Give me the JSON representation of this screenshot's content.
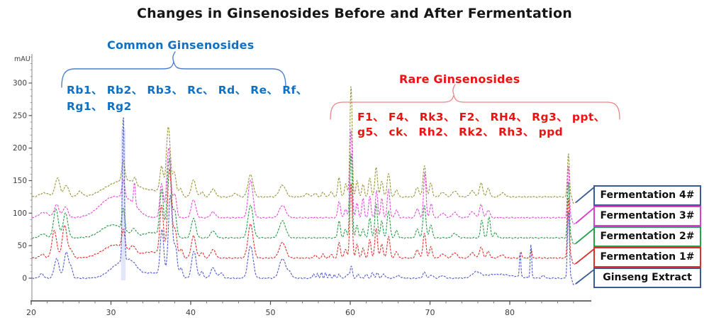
{
  "title": "Changes in Ginsenosides Before and After Fermentation",
  "y_axis": {
    "unit": "mAU",
    "ticks": [
      0,
      50,
      100,
      150,
      200,
      250,
      300
    ]
  },
  "x_axis": {
    "ticks": [
      20,
      30,
      40,
      50,
      60,
      70,
      80
    ]
  },
  "annotations": {
    "common": {
      "title": "Common Ginsenosides",
      "line1": "Rb1、 Rb2、 Rb3、 Rc、 Rd、 Re、 Rf、",
      "line2": "Rg1、 Rg2",
      "color": "#0e71c4",
      "brace_color": "#4c80cf"
    },
    "rare": {
      "title": "Rare Ginsenosides",
      "line1": "F1、 F4、 Rk3、 F2、 RH4、 Rg3、 ppt、",
      "line2": "g5、 ck、 Rh2、 Rk2、 Rh3、 ppd",
      "color": "#ee1212",
      "brace_color": "#ef8287"
    }
  },
  "legend": {
    "items": [
      {
        "label": "Fermentation 4#",
        "color": "#3b5b94"
      },
      {
        "label": "Fermentation 3#",
        "color": "#d83fd0"
      },
      {
        "label": "Fermentation 2#",
        "color": "#24a14e"
      },
      {
        "label": "Fermentation 1#",
        "color": "#e02d2d"
      },
      {
        "label": "Ginseng Extract",
        "color": "#3b5b94"
      }
    ]
  },
  "chart_data": {
    "type": "line",
    "title": "Changes in Ginsenosides Before and After Fermentation",
    "y_unit": "mAU",
    "x_range": [
      20,
      87.8
    ],
    "y_ticks": [
      0,
      50,
      100,
      150,
      200,
      250,
      300
    ],
    "x_ticks": [
      20,
      30,
      40,
      50,
      60,
      70,
      80
    ],
    "x_minor_step": 2,
    "y_minor_step": 10,
    "grid": false,
    "legend_position": "right-boxes",
    "highlight_band": {
      "t": 31.55,
      "v_top": 230,
      "color": "#c9d3f4"
    },
    "series": [
      {
        "name": "Fermentation 4#",
        "color": "#9a9a40",
        "baseline": 125,
        "peaks": [
          [
            21.7,
            6,
            0.6
          ],
          [
            23.3,
            29,
            0.3
          ],
          [
            24.4,
            18,
            0.3
          ],
          [
            26.1,
            8,
            0.3
          ],
          [
            30.6,
            20,
            1.6
          ],
          [
            31.55,
            30,
            0.18
          ],
          [
            32.4,
            12,
            1.0
          ],
          [
            33.0,
            10,
            0.15
          ],
          [
            35.0,
            10,
            1.5
          ],
          [
            36.35,
            40,
            0.22
          ],
          [
            37.2,
            104,
            0.25
          ],
          [
            37.95,
            36,
            0.22
          ],
          [
            38.7,
            13,
            0.2
          ],
          [
            40.35,
            26,
            0.28
          ],
          [
            41.4,
            8,
            0.2
          ],
          [
            42.8,
            12,
            0.3
          ],
          [
            45.6,
            5,
            0.3
          ],
          [
            47.5,
            34,
            0.32
          ],
          [
            51.5,
            18,
            0.4
          ],
          [
            54.6,
            5,
            0.3
          ],
          [
            55.6,
            6,
            0.18
          ],
          [
            56.6,
            7,
            0.18
          ],
          [
            57.6,
            8,
            0.18
          ],
          [
            58.6,
            30,
            0.16
          ],
          [
            59.45,
            21,
            0.16
          ],
          [
            60.1,
            172,
            0.14
          ],
          [
            60.85,
            25,
            0.15
          ],
          [
            61.6,
            19,
            0.16
          ],
          [
            62.45,
            29,
            0.16
          ],
          [
            63.25,
            46,
            0.16
          ],
          [
            63.95,
            25,
            0.16
          ],
          [
            64.8,
            36,
            0.18
          ],
          [
            65.8,
            11,
            0.18
          ],
          [
            68.4,
            15,
            0.2
          ],
          [
            69.3,
            48,
            0.18
          ],
          [
            70.1,
            21,
            0.18
          ],
          [
            71.6,
            7,
            0.3
          ],
          [
            73.1,
            9,
            0.3
          ],
          [
            75.3,
            9,
            0.3
          ],
          [
            76.4,
            22,
            0.2
          ],
          [
            77.3,
            13,
            0.2
          ],
          [
            79.1,
            6,
            0.3
          ],
          [
            87.35,
            68,
            0.12
          ]
        ]
      },
      {
        "name": "Fermentation 3#",
        "color": "#e650dd",
        "baseline": 93,
        "peaks": [
          [
            21.6,
            8,
            0.6
          ],
          [
            23.2,
            20,
            0.3
          ],
          [
            24.3,
            17,
            0.3
          ],
          [
            30.2,
            31,
            1.6
          ],
          [
            31.55,
            26,
            0.18
          ],
          [
            32.5,
            15,
            1.0
          ],
          [
            32.95,
            33,
            0.11
          ],
          [
            36.35,
            52,
            0.22
          ],
          [
            37.25,
            108,
            0.25
          ],
          [
            38.0,
            36,
            0.22
          ],
          [
            40.35,
            28,
            0.28
          ],
          [
            42.8,
            9,
            0.3
          ],
          [
            47.5,
            58,
            0.3
          ],
          [
            51.5,
            19,
            0.4
          ],
          [
            58.6,
            26,
            0.16
          ],
          [
            59.4,
            13,
            0.16
          ],
          [
            60.1,
            135,
            0.15
          ],
          [
            60.85,
            22,
            0.15
          ],
          [
            61.6,
            30,
            0.14
          ],
          [
            62.45,
            34,
            0.14
          ],
          [
            63.3,
            42,
            0.14
          ],
          [
            63.95,
            30,
            0.14
          ],
          [
            64.8,
            44,
            0.16
          ],
          [
            65.8,
            12,
            0.18
          ],
          [
            68.4,
            14,
            0.2
          ],
          [
            69.35,
            70,
            0.15
          ],
          [
            70.15,
            22,
            0.16
          ],
          [
            71.6,
            7,
            0.3
          ],
          [
            73.1,
            8,
            0.3
          ],
          [
            75.3,
            9,
            0.3
          ],
          [
            76.4,
            20,
            0.2
          ],
          [
            77.3,
            12,
            0.2
          ],
          [
            87.35,
            80,
            0.12
          ]
        ]
      },
      {
        "name": "Fermentation 2#",
        "color": "#2f9e4a",
        "baseline": 62,
        "peaks": [
          [
            21.5,
            6,
            0.4
          ],
          [
            23.1,
            44,
            0.3
          ],
          [
            24.3,
            38,
            0.3
          ],
          [
            30.2,
            20,
            1.4
          ],
          [
            31.55,
            32,
            0.18
          ],
          [
            32.9,
            10,
            0.3
          ],
          [
            35.2,
            8,
            1.2
          ],
          [
            36.35,
            70,
            0.22
          ],
          [
            37.3,
            120,
            0.25
          ],
          [
            38.0,
            40,
            0.22
          ],
          [
            40.35,
            30,
            0.28
          ],
          [
            42.8,
            11,
            0.3
          ],
          [
            47.5,
            50,
            0.32
          ],
          [
            51.5,
            26,
            0.4
          ],
          [
            58.6,
            26,
            0.16
          ],
          [
            59.4,
            13,
            0.16
          ],
          [
            60.1,
            130,
            0.15
          ],
          [
            60.85,
            20,
            0.15
          ],
          [
            61.6,
            14,
            0.16
          ],
          [
            62.45,
            30,
            0.16
          ],
          [
            63.25,
            52,
            0.16
          ],
          [
            63.95,
            26,
            0.16
          ],
          [
            64.8,
            42,
            0.18
          ],
          [
            65.8,
            11,
            0.18
          ],
          [
            68.4,
            13,
            0.2
          ],
          [
            69.3,
            50,
            0.18
          ],
          [
            70.1,
            20,
            0.18
          ],
          [
            73.1,
            7,
            0.3
          ],
          [
            76.5,
            28,
            0.16
          ],
          [
            77.4,
            32,
            0.16
          ],
          [
            78.2,
            8,
            0.2
          ],
          [
            87.35,
            88,
            0.12
          ]
        ]
      },
      {
        "name": "Fermentation 1#",
        "color": "#e23535",
        "baseline": 31,
        "peaks": [
          [
            21.4,
            6,
            0.3
          ],
          [
            22.9,
            42,
            0.3
          ],
          [
            24.2,
            50,
            0.3
          ],
          [
            25.0,
            12,
            0.25
          ],
          [
            30.6,
            20,
            1.6
          ],
          [
            31.55,
            28,
            0.18
          ],
          [
            32.8,
            10,
            0.3
          ],
          [
            35.3,
            9,
            1.3
          ],
          [
            36.35,
            75,
            0.22
          ],
          [
            37.35,
            135,
            0.25
          ],
          [
            38.05,
            42,
            0.22
          ],
          [
            38.8,
            14,
            0.2
          ],
          [
            40.35,
            34,
            0.28
          ],
          [
            41.4,
            9,
            0.2
          ],
          [
            42.8,
            13,
            0.3
          ],
          [
            47.5,
            52,
            0.32
          ],
          [
            51.5,
            24,
            0.4
          ],
          [
            55.6,
            5,
            0.15
          ],
          [
            56.6,
            6,
            0.15
          ],
          [
            57.6,
            6,
            0.15
          ],
          [
            58.6,
            24,
            0.16
          ],
          [
            59.4,
            14,
            0.16
          ],
          [
            60.1,
            116,
            0.15
          ],
          [
            60.85,
            22,
            0.15
          ],
          [
            61.6,
            15,
            0.16
          ],
          [
            62.45,
            28,
            0.16
          ],
          [
            63.25,
            46,
            0.16
          ],
          [
            63.95,
            22,
            0.16
          ],
          [
            64.8,
            33,
            0.18
          ],
          [
            65.8,
            10,
            0.18
          ],
          [
            68.4,
            13,
            0.2
          ],
          [
            69.3,
            38,
            0.18
          ],
          [
            70.1,
            17,
            0.18
          ],
          [
            71.6,
            6,
            0.3
          ],
          [
            73.1,
            8,
            0.3
          ],
          [
            75.3,
            8,
            0.3
          ],
          [
            76.4,
            17,
            0.2
          ],
          [
            77.3,
            10,
            0.2
          ],
          [
            79.0,
            5,
            0.3
          ],
          [
            81.4,
            10,
            0.1
          ],
          [
            82.7,
            12,
            0.1
          ],
          [
            87.35,
            95,
            0.12
          ]
        ]
      },
      {
        "name": "Ginseng Extract",
        "color": "#5661d2",
        "baseline": 0,
        "peaks": [
          [
            21.3,
            7,
            0.25
          ],
          [
            23.2,
            30,
            0.3
          ],
          [
            24.4,
            40,
            0.28
          ],
          [
            25.0,
            15,
            0.2
          ],
          [
            31.2,
            22,
            1.3
          ],
          [
            31.55,
            226,
            0.12
          ],
          [
            32.6,
            14,
            0.8
          ],
          [
            35.3,
            8,
            1.2
          ],
          [
            36.4,
            70,
            0.22
          ],
          [
            37.45,
            125,
            0.25
          ],
          [
            38.1,
            45,
            0.22
          ],
          [
            38.8,
            15,
            0.2
          ],
          [
            40.4,
            42,
            0.28
          ],
          [
            41.4,
            10,
            0.2
          ],
          [
            42.8,
            16,
            0.3
          ],
          [
            43.8,
            8,
            0.25
          ],
          [
            47.5,
            50,
            0.32
          ],
          [
            51.5,
            30,
            0.4
          ],
          [
            52.4,
            8,
            0.3
          ],
          [
            55.4,
            7,
            0.12
          ],
          [
            55.9,
            8,
            0.1
          ],
          [
            56.4,
            9,
            0.1
          ],
          [
            56.9,
            8,
            0.1
          ],
          [
            57.4,
            7,
            0.1
          ],
          [
            58.0,
            6,
            0.1
          ],
          [
            58.6,
            7,
            0.12
          ],
          [
            59.8,
            6,
            0.3
          ],
          [
            60.15,
            15,
            0.13
          ],
          [
            61.0,
            6,
            0.15
          ],
          [
            62.0,
            6,
            0.15
          ],
          [
            62.8,
            8,
            0.15
          ],
          [
            63.4,
            8,
            0.15
          ],
          [
            64.2,
            6,
            0.2
          ],
          [
            66.0,
            4,
            0.3
          ],
          [
            69.3,
            9,
            0.2
          ],
          [
            70.2,
            5,
            0.2
          ],
          [
            71.5,
            4,
            0.3
          ],
          [
            75.8,
            8,
            0.5
          ],
          [
            78.5,
            6,
            1.8
          ],
          [
            81.3,
            38,
            0.09
          ],
          [
            82.65,
            52,
            0.09
          ],
          [
            84.2,
            4,
            0.2
          ],
          [
            87.35,
            105,
            0.12
          ]
        ]
      }
    ]
  }
}
